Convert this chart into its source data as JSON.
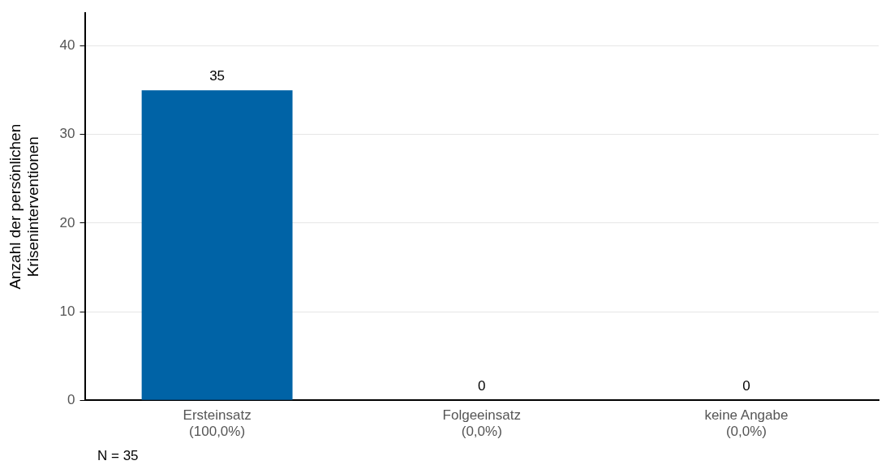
{
  "chart_data": {
    "type": "bar",
    "categories": [
      "Ersteinsatz\n(100,0%)",
      "Folgeeinsatz\n(0,0%)",
      "keine Angabe\n(0,0%)"
    ],
    "values": [
      35,
      0,
      0
    ],
    "color": "#0063a6",
    "ylabel": "Anzahl der persönlichen\nKriseninterventionen",
    "ylim": [
      0,
      43.7
    ],
    "yticks": [
      0,
      10,
      20,
      30,
      40
    ],
    "grid": "y",
    "legend": false,
    "data_labels": true,
    "annotations": [
      "N = 35"
    ]
  }
}
